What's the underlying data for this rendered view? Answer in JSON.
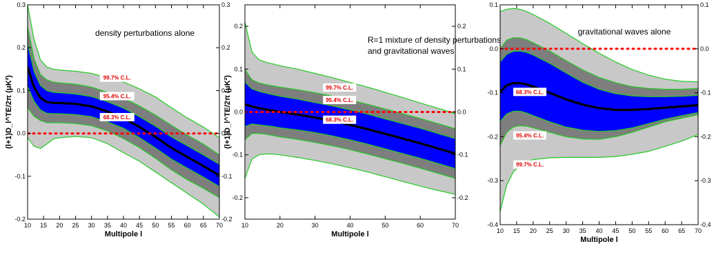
{
  "colors": {
    "band_997": "#c8c8c8",
    "band_954": "#7e7e7e",
    "band_683": "#0000ff",
    "edge": "#22cc22",
    "fiducial": "#000000",
    "zero_line": "#ff0000",
    "cl_text": "#e00000"
  },
  "chart_data": [
    {
      "type": "area",
      "annotation_lines": [
        "density perturbations alone"
      ],
      "xlabel": "Multipole l",
      "ylabel": "(l+1)D_l^TE/2π (μK²)",
      "xlim": [
        10,
        70
      ],
      "ylim": [
        -0.2,
        0.3
      ],
      "xticks": [
        10,
        15,
        20,
        25,
        30,
        35,
        40,
        45,
        50,
        55,
        60,
        65,
        70
      ],
      "yticks": [
        -0.2,
        -0.1,
        0.0,
        0.1,
        0.2,
        0.3
      ],
      "ytick_labels": [
        "-0.2",
        "-0.1",
        "0.0",
        "0.1",
        "0.2",
        "0.3"
      ],
      "grid": false,
      "zero_line": 0.0,
      "x": [
        10,
        12,
        14,
        16,
        18,
        20,
        25,
        30,
        35,
        40,
        45,
        50,
        55,
        60,
        65,
        70
      ],
      "series": [
        {
          "values": [
            0.155,
            0.108,
            0.083,
            0.073,
            0.071,
            0.071,
            0.069,
            0.063,
            0.051,
            0.036,
            0.015,
            -0.008,
            -0.034,
            -0.055,
            -0.076,
            -0.098
          ]
        }
      ],
      "bands": [
        {
          "level": "99.7% C.L.",
          "upper": [
            0.3,
            0.22,
            0.172,
            0.155,
            0.15,
            0.148,
            0.145,
            0.14,
            0.13,
            0.12,
            0.104,
            0.085,
            0.06,
            0.036,
            0.015,
            -0.01
          ],
          "lower": [
            -0.01,
            -0.03,
            -0.035,
            -0.025,
            -0.013,
            -0.01,
            -0.007,
            -0.01,
            -0.024,
            -0.045,
            -0.065,
            -0.09,
            -0.115,
            -0.14,
            -0.165,
            -0.195
          ]
        },
        {
          "level": "95.4% C.L.",
          "upper": [
            0.25,
            0.175,
            0.138,
            0.125,
            0.12,
            0.118,
            0.115,
            0.108,
            0.096,
            0.082,
            0.064,
            0.043,
            0.019,
            -0.004,
            -0.025,
            -0.05
          ],
          "lower": [
            0.06,
            0.04,
            0.03,
            0.025,
            0.025,
            0.025,
            0.023,
            0.018,
            0.006,
            -0.012,
            -0.033,
            -0.058,
            -0.085,
            -0.108,
            -0.128,
            -0.15
          ]
        },
        {
          "level": "68.3% C.L.",
          "upper": [
            0.21,
            0.145,
            0.112,
            0.1,
            0.096,
            0.095,
            0.092,
            0.086,
            0.074,
            0.059,
            0.039,
            0.017,
            -0.008,
            -0.029,
            -0.05,
            -0.072
          ],
          "lower": [
            0.11,
            0.075,
            0.055,
            0.047,
            0.046,
            0.046,
            0.044,
            0.039,
            0.027,
            0.012,
            -0.01,
            -0.034,
            -0.06,
            -0.081,
            -0.102,
            -0.124
          ]
        }
      ],
      "cl_labels": [
        {
          "text": "99.7% C.L.",
          "x": 38,
          "y": 0.13
        },
        {
          "text": "95.4% C.L.",
          "x": 38,
          "y": 0.087
        },
        {
          "text": "68.3% C.L.",
          "x": 38,
          "y": 0.038
        }
      ]
    },
    {
      "type": "area",
      "annotation_lines": [
        "R=1 mixture of density perturbations",
        "and gravitational waves"
      ],
      "xlabel": "Multipole l",
      "ylabel": "(l+1)D_l^TE/2π (μK²)",
      "xlim": [
        10,
        70
      ],
      "ylim": [
        -0.25,
        0.25
      ],
      "xticks": [
        10,
        20,
        30,
        40,
        50,
        60,
        70
      ],
      "yticks": [
        -0.2,
        -0.1,
        0.0,
        0.1,
        0.2
      ],
      "ytick_labels": [
        "-0.2",
        "-0.1",
        "0.0",
        "0.1",
        "0.2"
      ],
      "grid": false,
      "zero_line": 0.0,
      "x": [
        10,
        12,
        14,
        16,
        18,
        20,
        25,
        30,
        35,
        40,
        45,
        50,
        55,
        60,
        65,
        70
      ],
      "series": [
        {
          "values": [
            0.018,
            0.013,
            0.009,
            0.006,
            0.003,
            0.0,
            -0.006,
            -0.013,
            -0.021,
            -0.03,
            -0.04,
            -0.051,
            -0.062,
            -0.073,
            -0.085,
            -0.097
          ]
        }
      ],
      "bands": [
        {
          "level": "99.7% C.L.",
          "upper": [
            0.21,
            0.14,
            0.122,
            0.116,
            0.112,
            0.108,
            0.1,
            0.09,
            0.08,
            0.069,
            0.058,
            0.046,
            0.034,
            0.021,
            0.009,
            -0.004
          ],
          "lower": [
            -0.155,
            -0.11,
            -0.1,
            -0.098,
            -0.098,
            -0.1,
            -0.106,
            -0.113,
            -0.121,
            -0.13,
            -0.14,
            -0.151,
            -0.162,
            -0.173,
            -0.183,
            -0.192
          ]
        },
        {
          "level": "95.4% C.L.",
          "upper": [
            0.1,
            0.075,
            0.068,
            0.064,
            0.061,
            0.058,
            0.052,
            0.045,
            0.037,
            0.028,
            0.018,
            0.007,
            -0.004,
            -0.015,
            -0.027,
            -0.039
          ],
          "lower": [
            -0.065,
            -0.05,
            -0.05,
            -0.052,
            -0.055,
            -0.058,
            -0.064,
            -0.071,
            -0.079,
            -0.088,
            -0.098,
            -0.109,
            -0.12,
            -0.131,
            -0.143,
            -0.155
          ]
        },
        {
          "level": "68.3% C.L.",
          "upper": [
            0.07,
            0.054,
            0.048,
            0.044,
            0.04,
            0.037,
            0.03,
            0.022,
            0.014,
            0.005,
            -0.005,
            -0.016,
            -0.027,
            -0.038,
            -0.05,
            -0.062
          ],
          "lower": [
            -0.034,
            -0.028,
            -0.03,
            -0.032,
            -0.034,
            -0.037,
            -0.042,
            -0.048,
            -0.056,
            -0.065,
            -0.075,
            -0.086,
            -0.097,
            -0.108,
            -0.12,
            -0.132
          ]
        }
      ],
      "cl_labels": [
        {
          "text": "99.7% C.L.",
          "x": 37,
          "y": 0.057
        },
        {
          "text": "95.4% C.L.",
          "x": 37,
          "y": 0.028
        },
        {
          "text": "68.3% C.L.",
          "x": 37,
          "y": -0.018
        }
      ]
    },
    {
      "type": "area",
      "annotation_lines": [
        "gravitational waves alone"
      ],
      "xlabel": "Multipole l",
      "ylabel": "",
      "xlim": [
        10,
        70
      ],
      "ylim": [
        -0.4,
        0.1
      ],
      "xticks": [
        10,
        15,
        20,
        25,
        30,
        35,
        40,
        45,
        50,
        55,
        60,
        65,
        70
      ],
      "yticks": [
        -0.4,
        -0.3,
        -0.2,
        -0.1,
        0.0,
        0.1
      ],
      "ytick_labels": [
        "-0.4",
        "-0.3",
        "-0.2",
        "-0.1",
        "0.0",
        "0.1"
      ],
      "grid": false,
      "zero_line": 0.0,
      "x": [
        10,
        12,
        14,
        16,
        18,
        20,
        25,
        30,
        35,
        40,
        45,
        50,
        55,
        60,
        65,
        70
      ],
      "series": [
        {
          "values": [
            -0.098,
            -0.083,
            -0.078,
            -0.078,
            -0.081,
            -0.086,
            -0.1,
            -0.115,
            -0.127,
            -0.135,
            -0.139,
            -0.139,
            -0.137,
            -0.134,
            -0.131,
            -0.128
          ]
        }
      ],
      "bands": [
        {
          "level": "99.7% C.L.",
          "upper": [
            0.085,
            0.09,
            0.092,
            0.09,
            0.085,
            0.078,
            0.058,
            0.035,
            0.012,
            -0.01,
            -0.03,
            -0.047,
            -0.06,
            -0.069,
            -0.074,
            -0.075
          ],
          "lower": [
            -0.37,
            -0.31,
            -0.28,
            -0.265,
            -0.257,
            -0.252,
            -0.248,
            -0.247,
            -0.247,
            -0.247,
            -0.245,
            -0.24,
            -0.233,
            -0.222,
            -0.21,
            -0.195
          ]
        },
        {
          "level": "95.4% C.L.",
          "upper": [
            0.0,
            0.02,
            0.025,
            0.025,
            0.021,
            0.014,
            -0.005,
            -0.027,
            -0.048,
            -0.065,
            -0.077,
            -0.086,
            -0.09,
            -0.092,
            -0.092,
            -0.09
          ],
          "lower": [
            -0.22,
            -0.19,
            -0.178,
            -0.175,
            -0.176,
            -0.18,
            -0.19,
            -0.2,
            -0.205,
            -0.206,
            -0.2,
            -0.19,
            -0.178,
            -0.166,
            -0.158,
            -0.15
          ]
        },
        {
          "level": "68.3% C.L.",
          "upper": [
            -0.03,
            -0.012,
            -0.006,
            -0.005,
            -0.008,
            -0.014,
            -0.033,
            -0.055,
            -0.076,
            -0.092,
            -0.102,
            -0.107,
            -0.109,
            -0.109,
            -0.108,
            -0.106
          ],
          "lower": [
            -0.165,
            -0.148,
            -0.142,
            -0.142,
            -0.146,
            -0.152,
            -0.166,
            -0.178,
            -0.185,
            -0.188,
            -0.186,
            -0.18,
            -0.17,
            -0.16,
            -0.152,
            -0.145
          ]
        }
      ],
      "cl_labels": [
        {
          "text": "68.3% C.L.",
          "x": 19,
          "y": -0.098
        },
        {
          "text": "95.4% C.L.",
          "x": 19,
          "y": -0.197
        },
        {
          "text": "99.7% C.L.",
          "x": 19,
          "y": -0.263
        }
      ]
    }
  ]
}
